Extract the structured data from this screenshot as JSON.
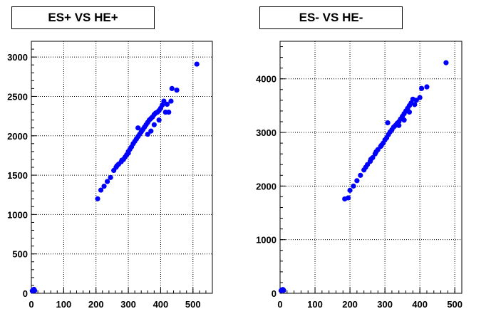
{
  "chart_data": [
    {
      "type": "scatter",
      "title": "ES+ VS HE+",
      "xlim": [
        0,
        560
      ],
      "ylim": [
        0,
        3200
      ],
      "xticks": [
        0,
        100,
        200,
        300,
        400,
        500
      ],
      "yticks": [
        0,
        500,
        1000,
        1500,
        2000,
        2500,
        3000
      ],
      "grid": true,
      "marker_color": "#0000ff",
      "points": [
        [
          3,
          30
        ],
        [
          5,
          40
        ],
        [
          8,
          50
        ],
        [
          10,
          35
        ],
        [
          6,
          45
        ],
        [
          205,
          1200
        ],
        [
          215,
          1310
        ],
        [
          225,
          1360
        ],
        [
          235,
          1420
        ],
        [
          245,
          1470
        ],
        [
          255,
          1560
        ],
        [
          262,
          1600
        ],
        [
          270,
          1640
        ],
        [
          278,
          1670
        ],
        [
          285,
          1700
        ],
        [
          290,
          1730
        ],
        [
          295,
          1760
        ],
        [
          300,
          1800
        ],
        [
          305,
          1830
        ],
        [
          310,
          1860
        ],
        [
          315,
          1900
        ],
        [
          320,
          1930
        ],
        [
          325,
          1960
        ],
        [
          330,
          1990
        ],
        [
          335,
          2020
        ],
        [
          330,
          2100
        ],
        [
          340,
          2050
        ],
        [
          345,
          2080
        ],
        [
          350,
          2110
        ],
        [
          355,
          2140
        ],
        [
          360,
          2170
        ],
        [
          365,
          2200
        ],
        [
          370,
          2220
        ],
        [
          375,
          2240
        ],
        [
          380,
          2270
        ],
        [
          385,
          2290
        ],
        [
          390,
          2300
        ],
        [
          395,
          2320
        ],
        [
          400,
          2350
        ],
        [
          405,
          2390
        ],
        [
          410,
          2440
        ],
        [
          420,
          2400
        ],
        [
          425,
          2300
        ],
        [
          432,
          2440
        ],
        [
          435,
          2600
        ],
        [
          450,
          2580
        ],
        [
          512,
          2910
        ],
        [
          360,
          2020
        ],
        [
          370,
          2060
        ],
        [
          380,
          2140
        ],
        [
          395,
          2200
        ],
        [
          415,
          2300
        ],
        [
          300,
          1780
        ],
        [
          280,
          1690
        ],
        [
          265,
          1620
        ]
      ]
    },
    {
      "type": "scatter",
      "title": "ES- VS HE-",
      "xlim": [
        0,
        520
      ],
      "ylim": [
        0,
        4700
      ],
      "xticks": [
        0,
        100,
        200,
        300,
        400,
        500
      ],
      "yticks": [
        0,
        1000,
        2000,
        3000,
        4000
      ],
      "grid": true,
      "marker_color": "#0000ff",
      "points": [
        [
          3,
          50
        ],
        [
          5,
          60
        ],
        [
          8,
          70
        ],
        [
          10,
          55
        ],
        [
          6,
          65
        ],
        [
          185,
          1760
        ],
        [
          195,
          1780
        ],
        [
          200,
          1920
        ],
        [
          210,
          2000
        ],
        [
          220,
          2100
        ],
        [
          230,
          2200
        ],
        [
          240,
          2300
        ],
        [
          250,
          2400
        ],
        [
          258,
          2460
        ],
        [
          265,
          2530
        ],
        [
          272,
          2600
        ],
        [
          280,
          2680
        ],
        [
          288,
          2740
        ],
        [
          295,
          2800
        ],
        [
          300,
          2860
        ],
        [
          305,
          2900
        ],
        [
          310,
          2960
        ],
        [
          315,
          3010
        ],
        [
          320,
          3050
        ],
        [
          325,
          3100
        ],
        [
          308,
          3180
        ],
        [
          330,
          3130
        ],
        [
          335,
          3170
        ],
        [
          340,
          3200
        ],
        [
          345,
          3250
        ],
        [
          350,
          3300
        ],
        [
          355,
          3350
        ],
        [
          360,
          3400
        ],
        [
          365,
          3450
        ],
        [
          370,
          3500
        ],
        [
          375,
          3550
        ],
        [
          380,
          3620
        ],
        [
          390,
          3600
        ],
        [
          400,
          3650
        ],
        [
          405,
          3820
        ],
        [
          420,
          3850
        ],
        [
          475,
          4300
        ],
        [
          340,
          3130
        ],
        [
          355,
          3230
        ],
        [
          370,
          3380
        ],
        [
          385,
          3520
        ],
        [
          290,
          2760
        ],
        [
          275,
          2640
        ],
        [
          260,
          2500
        ],
        [
          245,
          2350
        ]
      ]
    }
  ]
}
